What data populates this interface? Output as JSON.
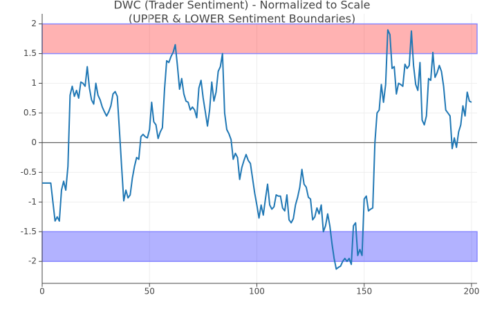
{
  "chart_data": {
    "type": "line",
    "title": [
      "DWC (Trader Sentiment) - Normalized to Scale",
      "(UPPER & LOWER Sentiment Boundaries)"
    ],
    "x": [
      0,
      1,
      2,
      3,
      4,
      5,
      6,
      7,
      8,
      9,
      10,
      11,
      12,
      13,
      14,
      15,
      16,
      17,
      18,
      19,
      20,
      21,
      22,
      23,
      24,
      25,
      26,
      27,
      28,
      29,
      30,
      31,
      32,
      33,
      34,
      35,
      36,
      37,
      38,
      39,
      40,
      41,
      42,
      43,
      44,
      45,
      46,
      47,
      48,
      49,
      50,
      51,
      52,
      53,
      54,
      55,
      56,
      57,
      58,
      59,
      60,
      61,
      62,
      63,
      64,
      65,
      66,
      67,
      68,
      69,
      70,
      71,
      72,
      73,
      74,
      75,
      76,
      77,
      78,
      79,
      80,
      81,
      82,
      83,
      84,
      85,
      86,
      87,
      88,
      89,
      90,
      91,
      92,
      93,
      94,
      95,
      96,
      97,
      98,
      99,
      100,
      101,
      102,
      103,
      104,
      105,
      106,
      107,
      108,
      109,
      110,
      111,
      112,
      113,
      114,
      115,
      116,
      117,
      118,
      119,
      120,
      121,
      122,
      123,
      124,
      125,
      126,
      127,
      128,
      129,
      130,
      131,
      132,
      133,
      134,
      135,
      136,
      137,
      138,
      139,
      140,
      141,
      142,
      143,
      144,
      145,
      146,
      147,
      148,
      149,
      150,
      151,
      152,
      153,
      154,
      155,
      156,
      157,
      158,
      159,
      160,
      161,
      162,
      163,
      164,
      165,
      166,
      167,
      168,
      169,
      170,
      171,
      172,
      173,
      174,
      175,
      176,
      177,
      178,
      179,
      180,
      181,
      182,
      183,
      184,
      185,
      186,
      187,
      188,
      189,
      190,
      191,
      192,
      193,
      194,
      195,
      196,
      197,
      198,
      199,
      200
    ],
    "values": [
      -0.68,
      -0.68,
      -0.68,
      -0.68,
      -0.68,
      -1.0,
      -1.32,
      -1.25,
      -1.32,
      -0.8,
      -0.65,
      -0.8,
      -0.4,
      0.8,
      0.95,
      0.78,
      0.88,
      0.75,
      1.02,
      1.0,
      0.95,
      1.28,
      0.92,
      0.72,
      0.65,
      1.0,
      0.8,
      0.72,
      0.6,
      0.52,
      0.45,
      0.52,
      0.62,
      0.82,
      0.86,
      0.78,
      0.2,
      -0.4,
      -0.98,
      -0.8,
      -0.93,
      -0.88,
      -0.6,
      -0.4,
      -0.25,
      -0.28,
      0.1,
      0.14,
      0.1,
      0.08,
      0.22,
      0.68,
      0.35,
      0.3,
      0.07,
      0.18,
      0.25,
      0.9,
      1.38,
      1.35,
      1.45,
      1.52,
      1.65,
      1.3,
      0.9,
      1.08,
      0.82,
      0.7,
      0.68,
      0.55,
      0.6,
      0.55,
      0.42,
      0.92,
      1.05,
      0.75,
      0.52,
      0.28,
      0.55,
      1.02,
      0.7,
      0.85,
      1.2,
      1.28,
      1.5,
      0.5,
      0.22,
      0.15,
      0.05,
      -0.28,
      -0.18,
      -0.25,
      -0.62,
      -0.42,
      -0.3,
      -0.2,
      -0.3,
      -0.35,
      -0.6,
      -0.85,
      -1.05,
      -1.27,
      -1.05,
      -1.22,
      -0.95,
      -0.7,
      -1.05,
      -1.12,
      -1.08,
      -0.88,
      -0.9,
      -0.9,
      -1.1,
      -1.15,
      -0.88,
      -1.3,
      -1.35,
      -1.28,
      -1.05,
      -0.92,
      -0.75,
      -0.45,
      -0.7,
      -0.75,
      -0.92,
      -0.95,
      -1.3,
      -1.25,
      -1.1,
      -1.2,
      -1.05,
      -1.5,
      -1.4,
      -1.2,
      -1.4,
      -1.7,
      -1.95,
      -2.13,
      -2.1,
      -2.08,
      -2.0,
      -1.95,
      -2.0,
      -1.95,
      -2.05,
      -1.4,
      -1.35,
      -1.9,
      -1.8,
      -1.9,
      -0.95,
      -0.9,
      -1.15,
      -1.12,
      -1.1,
      0.0,
      0.5,
      0.55,
      0.98,
      0.68,
      0.98,
      1.9,
      1.82,
      1.25,
      1.28,
      0.82,
      1.0,
      0.98,
      0.95,
      1.32,
      1.25,
      1.3,
      1.88,
      1.3,
      0.98,
      0.88,
      1.35,
      0.38,
      0.3,
      0.45,
      1.08,
      1.05,
      1.52,
      1.1,
      1.18,
      1.3,
      1.2,
      0.95,
      0.55,
      0.5,
      0.45,
      -0.1,
      0.08,
      -0.08,
      0.18,
      0.3,
      0.62,
      0.45,
      0.85,
      0.7,
      0.68
    ],
    "color": "#1f77b4",
    "bands": [
      {
        "range": [
          1.5,
          2
        ],
        "color": "rgba(255,0,0,0.3)",
        "edge": "#8888ff"
      },
      {
        "range": [
          -2,
          -1.5
        ],
        "color": "rgba(0,0,255,0.3)",
        "edge": "#8888ff"
      }
    ],
    "xlim": [
      0,
      202.6
    ],
    "ylim": [
      -2.37,
      2.17
    ],
    "xticks": [
      0,
      50,
      100,
      150,
      200
    ],
    "yticks": [
      -2,
      -1.5,
      -1,
      -0.5,
      0,
      0.5,
      1,
      1.5,
      2
    ],
    "grid": true,
    "zeroline": true
  }
}
